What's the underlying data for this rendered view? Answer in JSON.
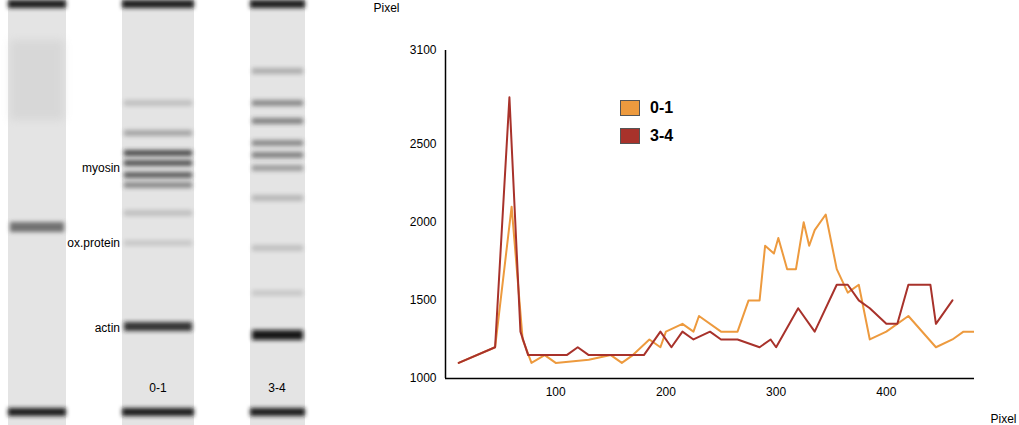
{
  "gel": {
    "band_labels": [
      "myosin",
      "ox.protein",
      "actin"
    ],
    "lanes": [
      "0-1",
      "3-4"
    ]
  },
  "chart_data": {
    "type": "line",
    "xlabel": "Pixel",
    "ylabel": "Pixel",
    "xlim": [
      0,
      480
    ],
    "xticks": [
      100,
      200,
      300,
      400
    ],
    "ylim": [
      1000,
      3100
    ],
    "yticks": [
      1000,
      1500,
      2000,
      2500,
      3100
    ],
    "grid": false,
    "legend": "top",
    "series": [
      {
        "name": "0-1",
        "color": "#ED9A3E",
        "x": [
          12,
          45,
          60,
          70,
          78,
          90,
          100,
          130,
          150,
          160,
          170,
          185,
          195,
          200,
          215,
          225,
          230,
          250,
          265,
          275,
          285,
          290,
          298,
          302,
          310,
          318,
          325,
          330,
          335,
          345,
          355,
          365,
          375,
          385,
          400,
          420,
          445,
          460,
          470,
          482
        ],
        "values": [
          1100,
          1200,
          2100,
          1250,
          1100,
          1150,
          1100,
          1120,
          1150,
          1100,
          1150,
          1250,
          1200,
          1300,
          1350,
          1300,
          1400,
          1300,
          1300,
          1500,
          1500,
          1850,
          1800,
          1900,
          1700,
          1700,
          2000,
          1850,
          1950,
          2050,
          1700,
          1550,
          1600,
          1250,
          1300,
          1400,
          1200,
          1250,
          1300,
          1300
        ]
      },
      {
        "name": "3-4",
        "color": "#A8322B",
        "x": [
          12,
          45,
          58,
          68,
          75,
          100,
          110,
          120,
          130,
          150,
          165,
          180,
          195,
          205,
          215,
          225,
          240,
          250,
          265,
          285,
          295,
          300,
          320,
          335,
          355,
          365,
          375,
          385,
          400,
          410,
          420,
          430,
          440,
          445,
          460
        ],
        "values": [
          1100,
          1200,
          2800,
          1300,
          1150,
          1150,
          1150,
          1200,
          1150,
          1150,
          1150,
          1150,
          1300,
          1200,
          1300,
          1250,
          1300,
          1250,
          1250,
          1200,
          1250,
          1200,
          1450,
          1300,
          1600,
          1600,
          1500,
          1450,
          1350,
          1350,
          1600,
          1600,
          1600,
          1350,
          1500
        ]
      }
    ]
  }
}
